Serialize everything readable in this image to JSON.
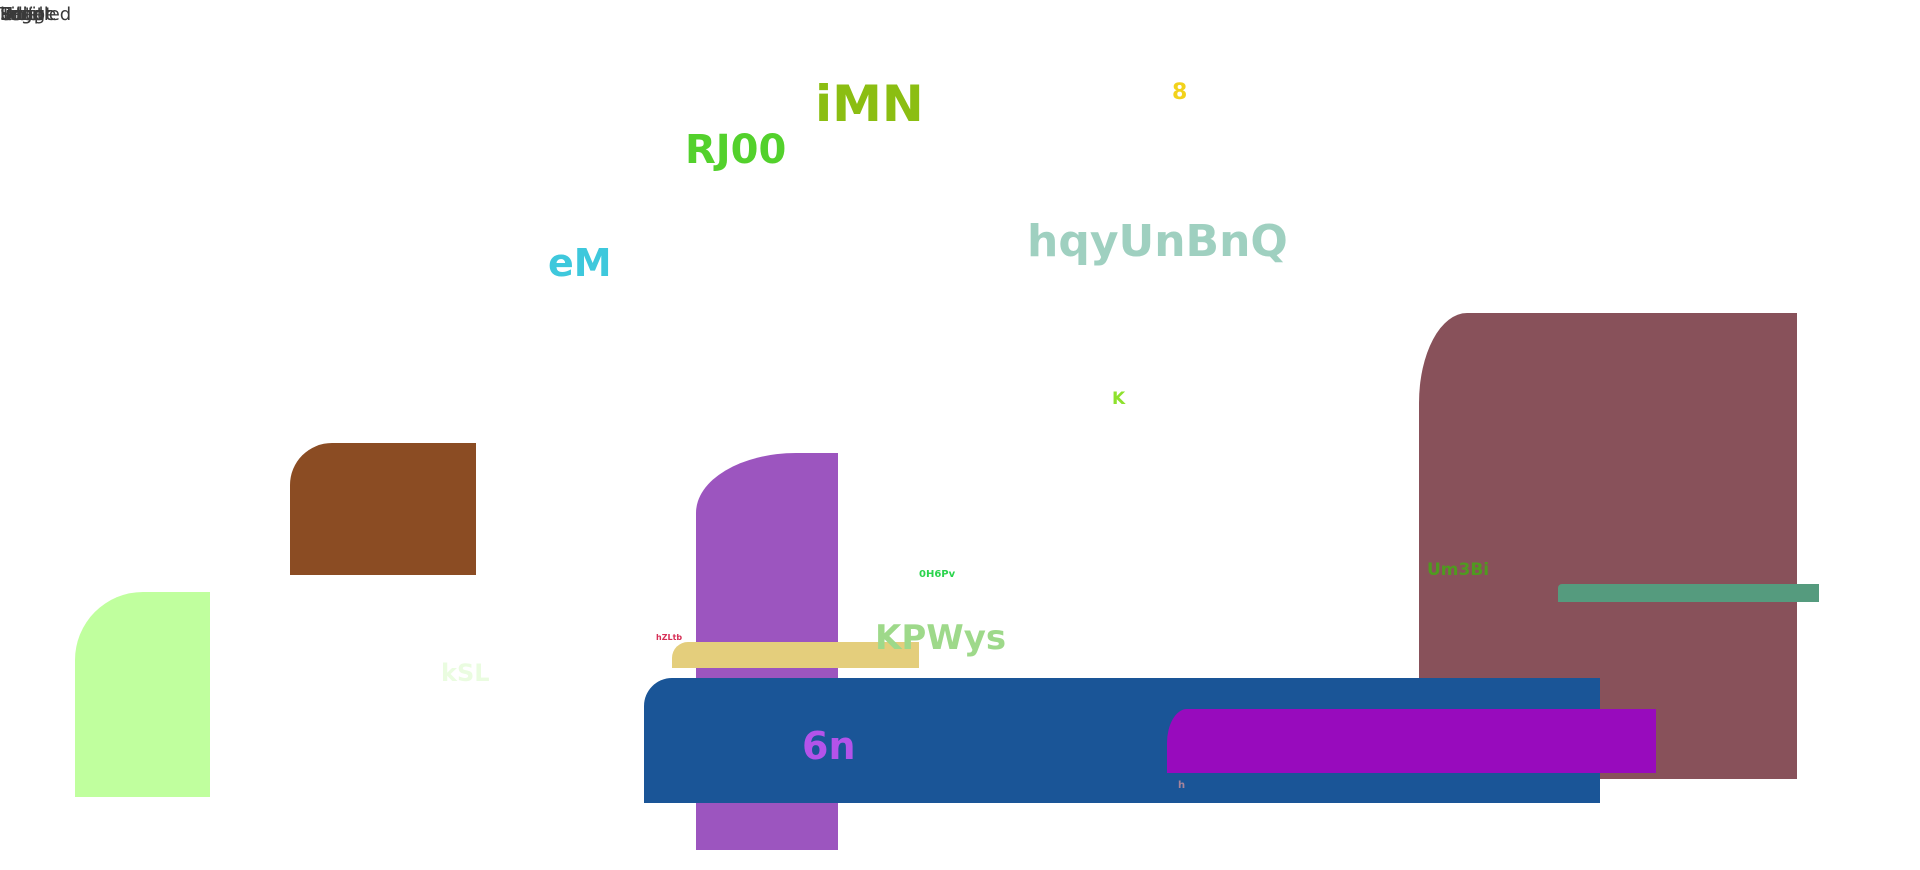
{
  "top_left": {
    "labels": [
      "Untitled",
      "Image",
      "Script",
      "Page",
      "Title",
      "Logo",
      "label",
      "Edit"
    ]
  },
  "texts": {
    "imn": "iMN",
    "rj00": "RJ00",
    "eight": "8",
    "em": "eM",
    "hqy": "hqyUnBnQ",
    "k": "K",
    "ohpv": "0H6Pv",
    "um": "Um3Bi",
    "hzl": "hZLtb",
    "kpw": "KPWys",
    "ksl": "kSL",
    "sixn": "6n",
    "h": "h"
  },
  "colors": {
    "imn": "#8bbe12",
    "rj00": "#53d12c",
    "eight": "#f2d21b",
    "em": "#3ec8dc",
    "hqy": "#9fd0c0",
    "k": "#8ee12d",
    "ohpv": "#2bd44d",
    "um": "#4f9a20",
    "hzl": "#d62f56",
    "kpw": "#9ed98a",
    "ksl": "#eafce0",
    "sixn": "#b353ea",
    "h": "#a6849a",
    "brown": "#8b4c23",
    "lime": "#c0ff9e",
    "purple": "#9c55bf",
    "sand": "#e4ce7c",
    "blue": "#1a5597",
    "maroon": "#88515a",
    "teal": "#559b7e",
    "violet": "#980bbd"
  }
}
